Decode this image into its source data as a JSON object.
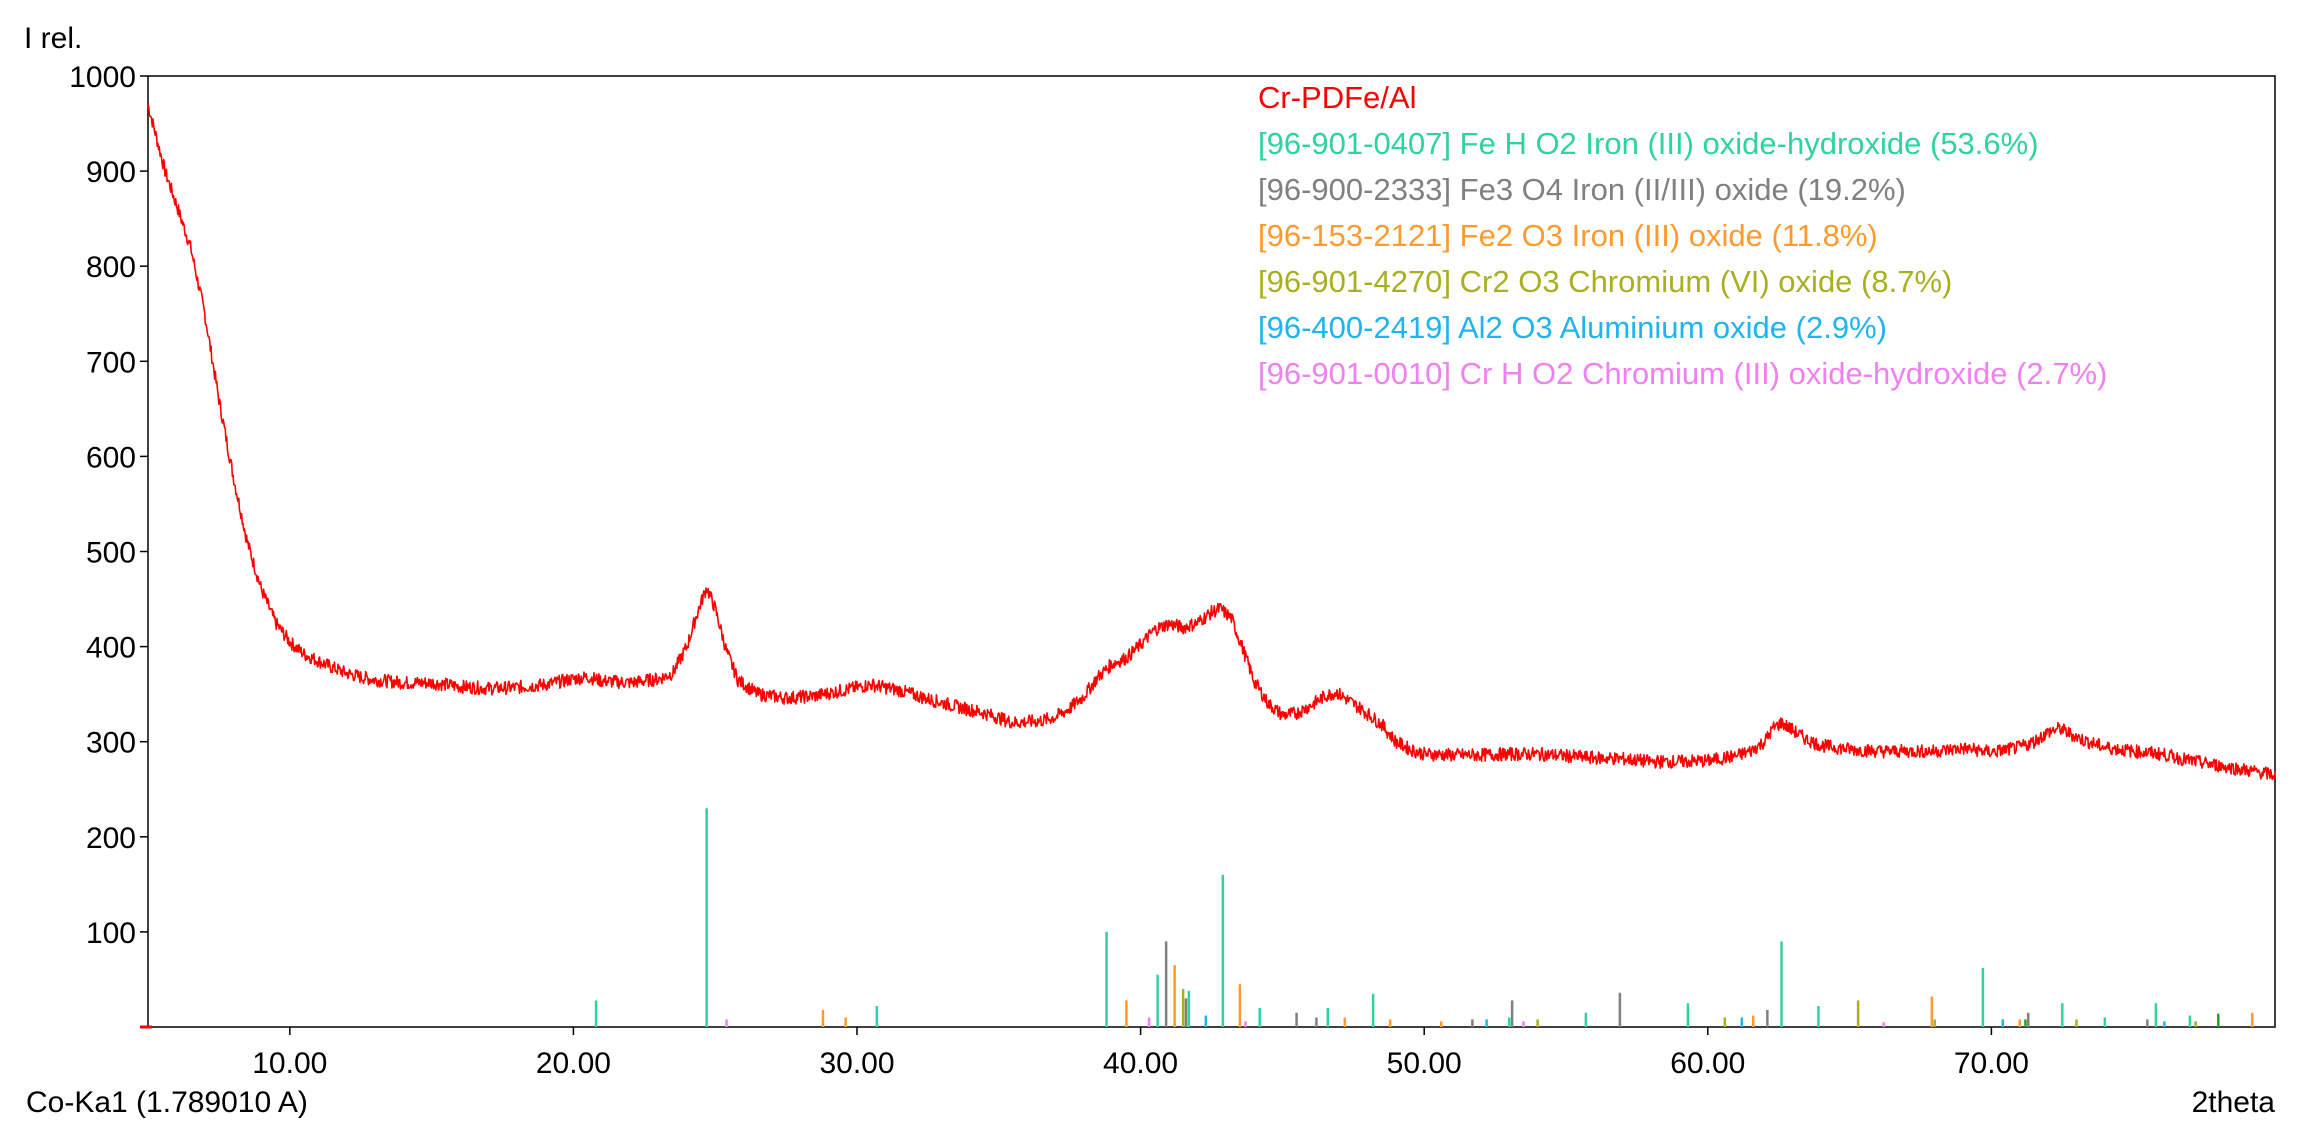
{
  "chart_data": {
    "type": "line",
    "title": "",
    "ylabel": "I rel.",
    "xlabel": "2theta",
    "radiation_label": "Co-Ka1 (1.789010 A)",
    "xlim": [
      5.0,
      80.0
    ],
    "ylim": [
      0,
      1000
    ],
    "grid": false,
    "legend_position": "top-right",
    "x_ticks": [
      {
        "value": 10,
        "label": "10.00"
      },
      {
        "value": 20,
        "label": "20.00"
      },
      {
        "value": 30,
        "label": "30.00"
      },
      {
        "value": 40,
        "label": "40.00"
      },
      {
        "value": 50,
        "label": "50.00"
      },
      {
        "value": 60,
        "label": "60.00"
      },
      {
        "value": 70,
        "label": "70.00"
      }
    ],
    "y_ticks": [
      {
        "value": 100,
        "label": "100"
      },
      {
        "value": 200,
        "label": "200"
      },
      {
        "value": 300,
        "label": "300"
      },
      {
        "value": 400,
        "label": "400"
      },
      {
        "value": 500,
        "label": "500"
      },
      {
        "value": 600,
        "label": "600"
      },
      {
        "value": 700,
        "label": "700"
      },
      {
        "value": 800,
        "label": "800"
      },
      {
        "value": 900,
        "label": "900"
      },
      {
        "value": 1000,
        "label": "1000"
      }
    ],
    "pattern": {
      "name": "Cr-PDFe/Al",
      "color": "#ff0000",
      "x": [
        5.0,
        5.3,
        5.6,
        6.0,
        6.5,
        7.0,
        7.5,
        8.0,
        8.5,
        9.0,
        9.5,
        10.0,
        10.5,
        11.0,
        11.5,
        12.0,
        12.5,
        13.0,
        14.0,
        15.0,
        16.0,
        17.0,
        18.0,
        19.0,
        20.0,
        20.5,
        21.0,
        22.0,
        23.0,
        23.5,
        24.0,
        24.4,
        24.7,
        25.0,
        25.4,
        25.8,
        26.5,
        27.5,
        28.5,
        29.5,
        30.5,
        31.5,
        32.5,
        33.5,
        34.5,
        35.5,
        36.5,
        37.0,
        37.5,
        38.0,
        38.5,
        39.0,
        39.5,
        40.0,
        40.5,
        41.0,
        41.5,
        42.0,
        42.5,
        42.8,
        43.2,
        43.6,
        44.0,
        44.5,
        45.0,
        45.5,
        46.0,
        46.5,
        46.9,
        47.3,
        47.8,
        48.5,
        49.0,
        49.5,
        50.0,
        51.0,
        52.0,
        53.0,
        54.0,
        55.0,
        56.0,
        57.0,
        58.0,
        59.0,
        60.0,
        61.0,
        61.5,
        62.0,
        62.3,
        62.6,
        63.0,
        63.5,
        64.0,
        65.0,
        66.0,
        67.0,
        68.0,
        69.0,
        70.0,
        71.0,
        71.5,
        72.0,
        72.4,
        72.8,
        73.2,
        74.0,
        75.0,
        76.0,
        77.0,
        78.0,
        79.0,
        80.0
      ],
      "y": [
        970,
        935,
        900,
        865,
        820,
        750,
        660,
        580,
        510,
        460,
        425,
        405,
        392,
        385,
        378,
        372,
        368,
        365,
        362,
        362,
        358,
        356,
        357,
        360,
        366,
        368,
        364,
        362,
        366,
        372,
        400,
        438,
        462,
        440,
        395,
        365,
        350,
        346,
        348,
        354,
        360,
        354,
        345,
        337,
        330,
        320,
        322,
        326,
        335,
        348,
        368,
        382,
        388,
        402,
        418,
        424,
        420,
        425,
        436,
        440,
        430,
        398,
        364,
        340,
        328,
        330,
        338,
        348,
        352,
        344,
        334,
        318,
        300,
        292,
        287,
        286,
        286,
        287,
        287,
        285,
        283,
        282,
        279,
        279,
        280,
        285,
        290,
        300,
        314,
        320,
        312,
        302,
        296,
        292,
        290,
        290,
        290,
        293,
        289,
        294,
        300,
        310,
        314,
        308,
        302,
        294,
        290,
        287,
        280,
        275,
        270,
        265
      ]
    },
    "phases": [
      {
        "code": "[96-901-0407]",
        "label": "[96-901-0407] Fe H O2 Iron (III) oxide-hydroxide (53.6%)",
        "color": "#2ed3a0",
        "peaks": [
          [
            20.8,
            28
          ],
          [
            24.7,
            230
          ],
          [
            30.7,
            22
          ],
          [
            38.8,
            100
          ],
          [
            40.6,
            55
          ],
          [
            41.7,
            38
          ],
          [
            42.9,
            160
          ],
          [
            44.2,
            20
          ],
          [
            46.6,
            20
          ],
          [
            48.2,
            35
          ],
          [
            53.0,
            10
          ],
          [
            55.7,
            15
          ],
          [
            59.3,
            25
          ],
          [
            62.6,
            90
          ],
          [
            63.9,
            22
          ],
          [
            69.7,
            62
          ],
          [
            72.5,
            25
          ],
          [
            74.0,
            10
          ],
          [
            75.8,
            25
          ],
          [
            77.0,
            12
          ]
        ]
      },
      {
        "code": "[96-900-2333]",
        "label": "[96-900-2333] Fe3 O4 Iron (II/III) oxide (19.2%)",
        "color": "#808080",
        "peaks": [
          [
            40.9,
            90
          ],
          [
            41.6,
            30
          ],
          [
            45.5,
            15
          ],
          [
            46.2,
            10
          ],
          [
            51.7,
            8
          ],
          [
            53.1,
            28
          ],
          [
            56.9,
            36
          ],
          [
            62.1,
            18
          ],
          [
            71.3,
            15
          ],
          [
            75.5,
            8
          ]
        ]
      },
      {
        "code": "[96-153-2121]",
        "label": "[96-153-2121] Fe2 O3 Iron (III) oxide (11.8%)",
        "color": "#ff9a2e",
        "peaks": [
          [
            28.8,
            18
          ],
          [
            29.6,
            10
          ],
          [
            39.5,
            28
          ],
          [
            41.2,
            65
          ],
          [
            43.5,
            45
          ],
          [
            47.2,
            10
          ],
          [
            48.8,
            8
          ],
          [
            50.6,
            6
          ],
          [
            61.6,
            12
          ],
          [
            67.9,
            32
          ],
          [
            71.0,
            8
          ],
          [
            79.2,
            15
          ]
        ]
      },
      {
        "code": "[96-901-4270]",
        "label": "[96-901-4270] Cr2 O3 Chromium (VI) oxide (8.7%)",
        "color": "#a8b020",
        "peaks": [
          [
            41.5,
            40
          ],
          [
            54.0,
            8
          ],
          [
            60.6,
            10
          ],
          [
            65.3,
            28
          ],
          [
            68.0,
            8
          ],
          [
            73.0,
            8
          ],
          [
            77.2,
            6
          ]
        ]
      },
      {
        "code": "[96-400-2419]",
        "label": "[96-400-2419] Al2 O3 Aluminium oxide (2.9%)",
        "color": "#1fb4f0",
        "peaks": [
          [
            42.3,
            12
          ],
          [
            52.2,
            8
          ],
          [
            61.2,
            10
          ],
          [
            70.4,
            8
          ],
          [
            76.1,
            6
          ]
        ]
      },
      {
        "code": "[96-901-0010]",
        "label": "[96-901-0010] Cr H O2 Chromium (III) oxide-hydroxide (2.7%)",
        "color": "#f080f0",
        "peaks": [
          [
            25.4,
            8
          ],
          [
            40.3,
            10
          ],
          [
            43.7,
            6
          ],
          [
            53.5,
            6
          ],
          [
            66.2,
            5
          ]
        ]
      }
    ],
    "trace_color": "#2e9a2e",
    "trace_peaks": [
      [
        78.0,
        14
      ],
      [
        71.2,
        8
      ]
    ]
  }
}
